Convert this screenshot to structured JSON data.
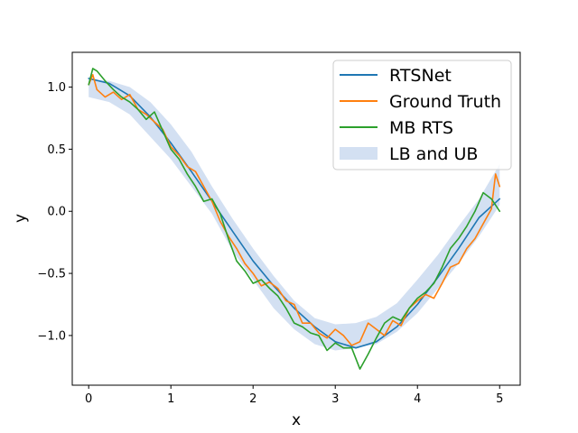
{
  "chart_data": {
    "type": "line",
    "title": "",
    "xlabel": "x",
    "ylabel": "y",
    "xlim": [
      -0.2,
      5.25
    ],
    "ylim": [
      -1.4,
      1.28
    ],
    "xticks": [
      0,
      1,
      2,
      3,
      4,
      5
    ],
    "xtick_labels": [
      "0",
      "1",
      "2",
      "3",
      "4",
      "5"
    ],
    "yticks": [
      -1.0,
      -0.5,
      0.0,
      0.5,
      1.0
    ],
    "ytick_labels": [
      "−1.0",
      "−0.5",
      "0.0",
      "0.5",
      "1.0"
    ],
    "grid": false,
    "legend_position": "top-right",
    "series": [
      {
        "name": "RTSNet",
        "kind": "line",
        "color": "#1f77b4",
        "x": [
          0,
          0.25,
          0.5,
          0.75,
          1.0,
          1.25,
          1.5,
          1.75,
          2.0,
          2.25,
          2.5,
          2.75,
          3.0,
          3.25,
          3.5,
          3.75,
          4.0,
          4.25,
          4.5,
          4.75,
          5.0
        ],
        "y": [
          1.07,
          1.03,
          0.93,
          0.76,
          0.55,
          0.32,
          0.08,
          -0.16,
          -0.4,
          -0.6,
          -0.78,
          -0.93,
          -1.05,
          -1.1,
          -1.05,
          -0.93,
          -0.75,
          -0.53,
          -0.3,
          -0.05,
          0.1
        ]
      },
      {
        "name": "Ground Truth",
        "kind": "line",
        "color": "#ff7f0e",
        "x": [
          0,
          0.05,
          0.1,
          0.2,
          0.3,
          0.4,
          0.5,
          0.6,
          0.7,
          0.8,
          0.9,
          1.0,
          1.1,
          1.2,
          1.3,
          1.4,
          1.5,
          1.6,
          1.7,
          1.8,
          1.9,
          2.0,
          2.1,
          2.2,
          2.3,
          2.4,
          2.5,
          2.6,
          2.7,
          2.8,
          2.9,
          3.0,
          3.1,
          3.2,
          3.3,
          3.4,
          3.5,
          3.6,
          3.7,
          3.8,
          3.9,
          4.0,
          4.1,
          4.2,
          4.3,
          4.4,
          4.5,
          4.6,
          4.7,
          4.8,
          4.9,
          4.95,
          5.0
        ],
        "y": [
          1.02,
          1.1,
          0.98,
          0.92,
          0.96,
          0.9,
          0.94,
          0.82,
          0.78,
          0.72,
          0.66,
          0.52,
          0.45,
          0.36,
          0.32,
          0.2,
          0.08,
          -0.08,
          -0.2,
          -0.3,
          -0.42,
          -0.5,
          -0.6,
          -0.57,
          -0.62,
          -0.72,
          -0.75,
          -0.9,
          -0.9,
          -0.98,
          -1.02,
          -0.95,
          -1.0,
          -1.08,
          -1.05,
          -0.9,
          -0.95,
          -1.0,
          -0.88,
          -0.92,
          -0.78,
          -0.72,
          -0.67,
          -0.7,
          -0.58,
          -0.45,
          -0.42,
          -0.3,
          -0.22,
          -0.1,
          0.02,
          0.3,
          0.2
        ]
      },
      {
        "name": "MB RTS",
        "kind": "line",
        "color": "#2ca02c",
        "x": [
          0,
          0.05,
          0.1,
          0.2,
          0.3,
          0.4,
          0.5,
          0.6,
          0.7,
          0.8,
          0.9,
          1.0,
          1.1,
          1.2,
          1.3,
          1.4,
          1.5,
          1.6,
          1.7,
          1.8,
          1.9,
          2.0,
          2.1,
          2.2,
          2.3,
          2.4,
          2.5,
          2.6,
          2.7,
          2.8,
          2.9,
          3.0,
          3.1,
          3.2,
          3.3,
          3.4,
          3.5,
          3.6,
          3.7,
          3.8,
          3.9,
          4.0,
          4.1,
          4.2,
          4.3,
          4.4,
          4.5,
          4.6,
          4.7,
          4.8,
          4.9,
          5.0
        ],
        "y": [
          1.02,
          1.15,
          1.13,
          1.05,
          0.98,
          0.92,
          0.88,
          0.82,
          0.74,
          0.8,
          0.65,
          0.5,
          0.42,
          0.3,
          0.2,
          0.08,
          0.1,
          -0.02,
          -0.22,
          -0.4,
          -0.48,
          -0.58,
          -0.55,
          -0.62,
          -0.68,
          -0.78,
          -0.9,
          -0.93,
          -0.98,
          -1.0,
          -1.12,
          -1.06,
          -1.1,
          -1.1,
          -1.27,
          -1.15,
          -1.02,
          -0.9,
          -0.85,
          -0.88,
          -0.78,
          -0.7,
          -0.65,
          -0.58,
          -0.45,
          -0.3,
          -0.22,
          -0.12,
          0.0,
          0.15,
          0.1,
          0.0
        ]
      }
    ],
    "band": {
      "name": "LB and UB",
      "kind": "fill_between",
      "color": "#aec7e8",
      "x": [
        0,
        0.25,
        0.5,
        0.75,
        1.0,
        1.25,
        1.5,
        1.75,
        2.0,
        2.25,
        2.5,
        2.75,
        3.0,
        3.25,
        3.5,
        3.75,
        4.0,
        4.25,
        4.5,
        4.75,
        5.0
      ],
      "lower": [
        0.92,
        0.88,
        0.78,
        0.6,
        0.42,
        0.2,
        -0.02,
        -0.32,
        -0.55,
        -0.78,
        -0.95,
        -1.07,
        -1.12,
        -1.1,
        -1.07,
        -0.97,
        -0.82,
        -0.62,
        -0.42,
        -0.2,
        0.05
      ],
      "upper": [
        1.06,
        1.05,
        1.0,
        0.88,
        0.7,
        0.48,
        0.2,
        -0.06,
        -0.3,
        -0.52,
        -0.72,
        -0.86,
        -0.91,
        -0.9,
        -0.85,
        -0.74,
        -0.55,
        -0.35,
        -0.12,
        0.1,
        0.38
      ]
    }
  }
}
